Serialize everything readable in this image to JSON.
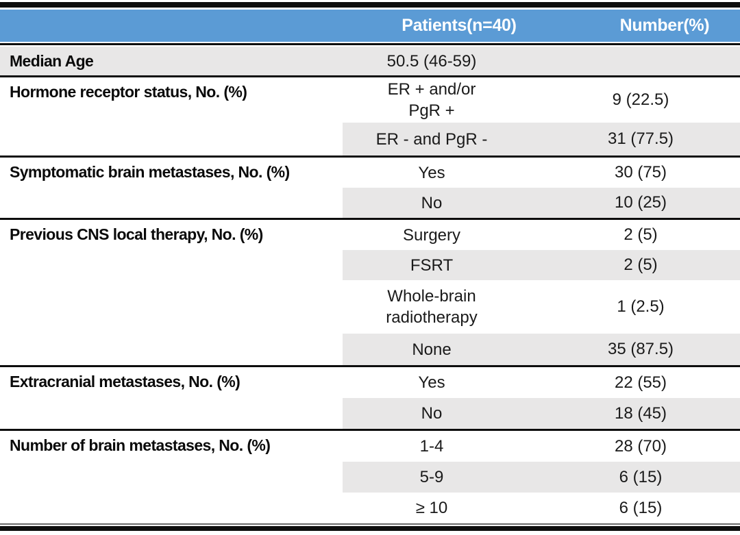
{
  "colors": {
    "header_bg": "#5B9BD5",
    "header_text": "#FFFFFF",
    "row_shade": "#E8E7E7",
    "border": "#0D0D0D",
    "text": "#111111"
  },
  "header": {
    "col_label": "",
    "col_patients": "Patients(n=40)",
    "col_number": "Number(%)"
  },
  "sections": [
    {
      "label": "Median Age",
      "rows": [
        {
          "value": "50.5 (46-59)",
          "number": ""
        }
      ]
    },
    {
      "label": "Hormone receptor status, No. (%)",
      "rows": [
        {
          "value": "ER + and/or\nPgR +",
          "number": "9 (22.5)"
        },
        {
          "value": "ER - and PgR -",
          "number": "31 (77.5)"
        }
      ]
    },
    {
      "label": "Symptomatic brain metastases, No. (%)",
      "rows": [
        {
          "value": "Yes",
          "number": "30 (75)"
        },
        {
          "value": "No",
          "number": "10 (25)"
        }
      ]
    },
    {
      "label": "Previous CNS local therapy, No. (%)",
      "rows": [
        {
          "value": "Surgery",
          "number": "2 (5)"
        },
        {
          "value": "FSRT",
          "number": "2 (5)"
        },
        {
          "value": "Whole-brain\nradiotherapy",
          "number": "1 (2.5)"
        },
        {
          "value": "None",
          "number": "35 (87.5)"
        }
      ]
    },
    {
      "label": "Extracranial metastases, No. (%)",
      "rows": [
        {
          "value": "Yes",
          "number": "22 (55)"
        },
        {
          "value": "No",
          "number": "18 (45)"
        }
      ]
    },
    {
      "label": "Number of brain metastases, No. (%)",
      "rows": [
        {
          "value": "1-4",
          "number": "28 (70)"
        },
        {
          "value": "5-9",
          "number": "6 (15)"
        },
        {
          "value": "≥ 10",
          "number": "6 (15)"
        }
      ]
    }
  ]
}
